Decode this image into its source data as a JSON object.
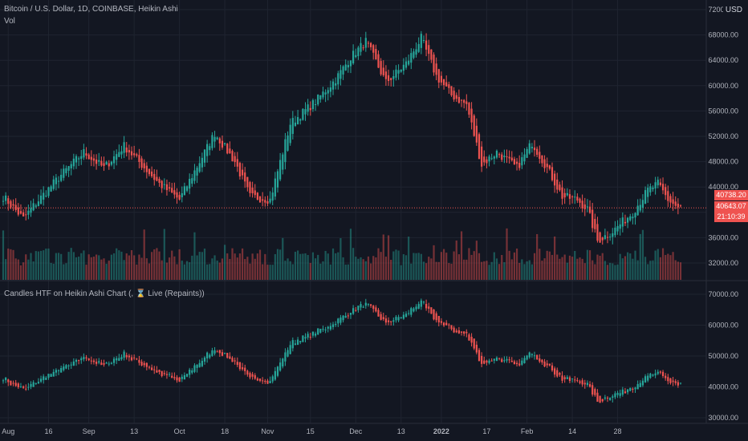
{
  "header": {
    "symbol_line": "Bitcoin / U.S. Dollar, 1D, COINBASE, Heikin Ashi",
    "volume_label": "Vol",
    "currency": "USD",
    "indicator_title": "Candles HTF on Heikin Ashi Chart (, ⌛ Live (Repaints))"
  },
  "price_boxes": {
    "last_price": "40738.20",
    "second_price": "40643.07",
    "countdown": "21:10:39"
  },
  "colors": {
    "background": "#131722",
    "up": "#26a69a",
    "down": "#ef5350",
    "grid": "#1f2430",
    "axis_text": "#b2b5be"
  },
  "chart_data": [
    {
      "type": "candlestick",
      "title": "Bitcoin / U.S. Dollar, 1D, COINBASE, Heikin Ashi",
      "ylim": [
        32000,
        72000
      ],
      "y_ticks": [
        32000,
        36000,
        40000,
        44000,
        48000,
        52000,
        56000,
        60000,
        64000,
        68000,
        72000
      ],
      "y_tick_labels": [
        "32000.00",
        "36000.00",
        "40000.00",
        "44000.00",
        "48000.00",
        "52000.00",
        "56000.00",
        "60000.00",
        "64000.00",
        "68000.00",
        "72000.00"
      ],
      "x_tick_labels": [
        "Aug",
        "16",
        "Sep",
        "13",
        "Oct",
        "18",
        "Nov",
        "15",
        "Dec",
        "13",
        "2022",
        "17",
        "Feb",
        "14",
        "28"
      ],
      "close_path": [
        [
          0,
          42500
        ],
        [
          8,
          39000
        ],
        [
          12,
          41000
        ],
        [
          22,
          45500
        ],
        [
          32,
          49500
        ],
        [
          40,
          47000
        ],
        [
          48,
          50500
        ],
        [
          55,
          47500
        ],
        [
          62,
          44500
        ],
        [
          70,
          42000
        ],
        [
          76,
          46500
        ],
        [
          84,
          52500
        ],
        [
          92,
          48000
        ],
        [
          98,
          42500
        ],
        [
          106,
          42000
        ],
        [
          114,
          54000
        ],
        [
          124,
          57500
        ],
        [
          132,
          61000
        ],
        [
          138,
          64500
        ],
        [
          144,
          67000
        ],
        [
          152,
          60500
        ],
        [
          160,
          63500
        ],
        [
          166,
          67500
        ],
        [
          172,
          61500
        ],
        [
          178,
          58500
        ],
        [
          184,
          57000
        ],
        [
          190,
          47500
        ],
        [
          196,
          49500
        ],
        [
          204,
          47000
        ],
        [
          210,
          51000
        ],
        [
          216,
          47000
        ],
        [
          222,
          42500
        ],
        [
          228,
          42000
        ],
        [
          232,
          40500
        ],
        [
          236,
          35500
        ],
        [
          242,
          37000
        ],
        [
          250,
          40000
        ],
        [
          256,
          43500
        ],
        [
          260,
          44500
        ],
        [
          264,
          42000
        ],
        [
          268,
          40700
        ]
      ],
      "volume_visible": true
    },
    {
      "type": "candlestick",
      "title": "Candles HTF on Heikin Ashi Chart (, ⌛ Live (Repaints))",
      "ylim": [
        30000,
        72000
      ],
      "y_ticks": [
        30000,
        40000,
        50000,
        60000,
        70000
      ],
      "y_tick_labels": [
        "30000.00",
        "40000.00",
        "50000.00",
        "60000.00",
        "70000.00"
      ]
    }
  ]
}
